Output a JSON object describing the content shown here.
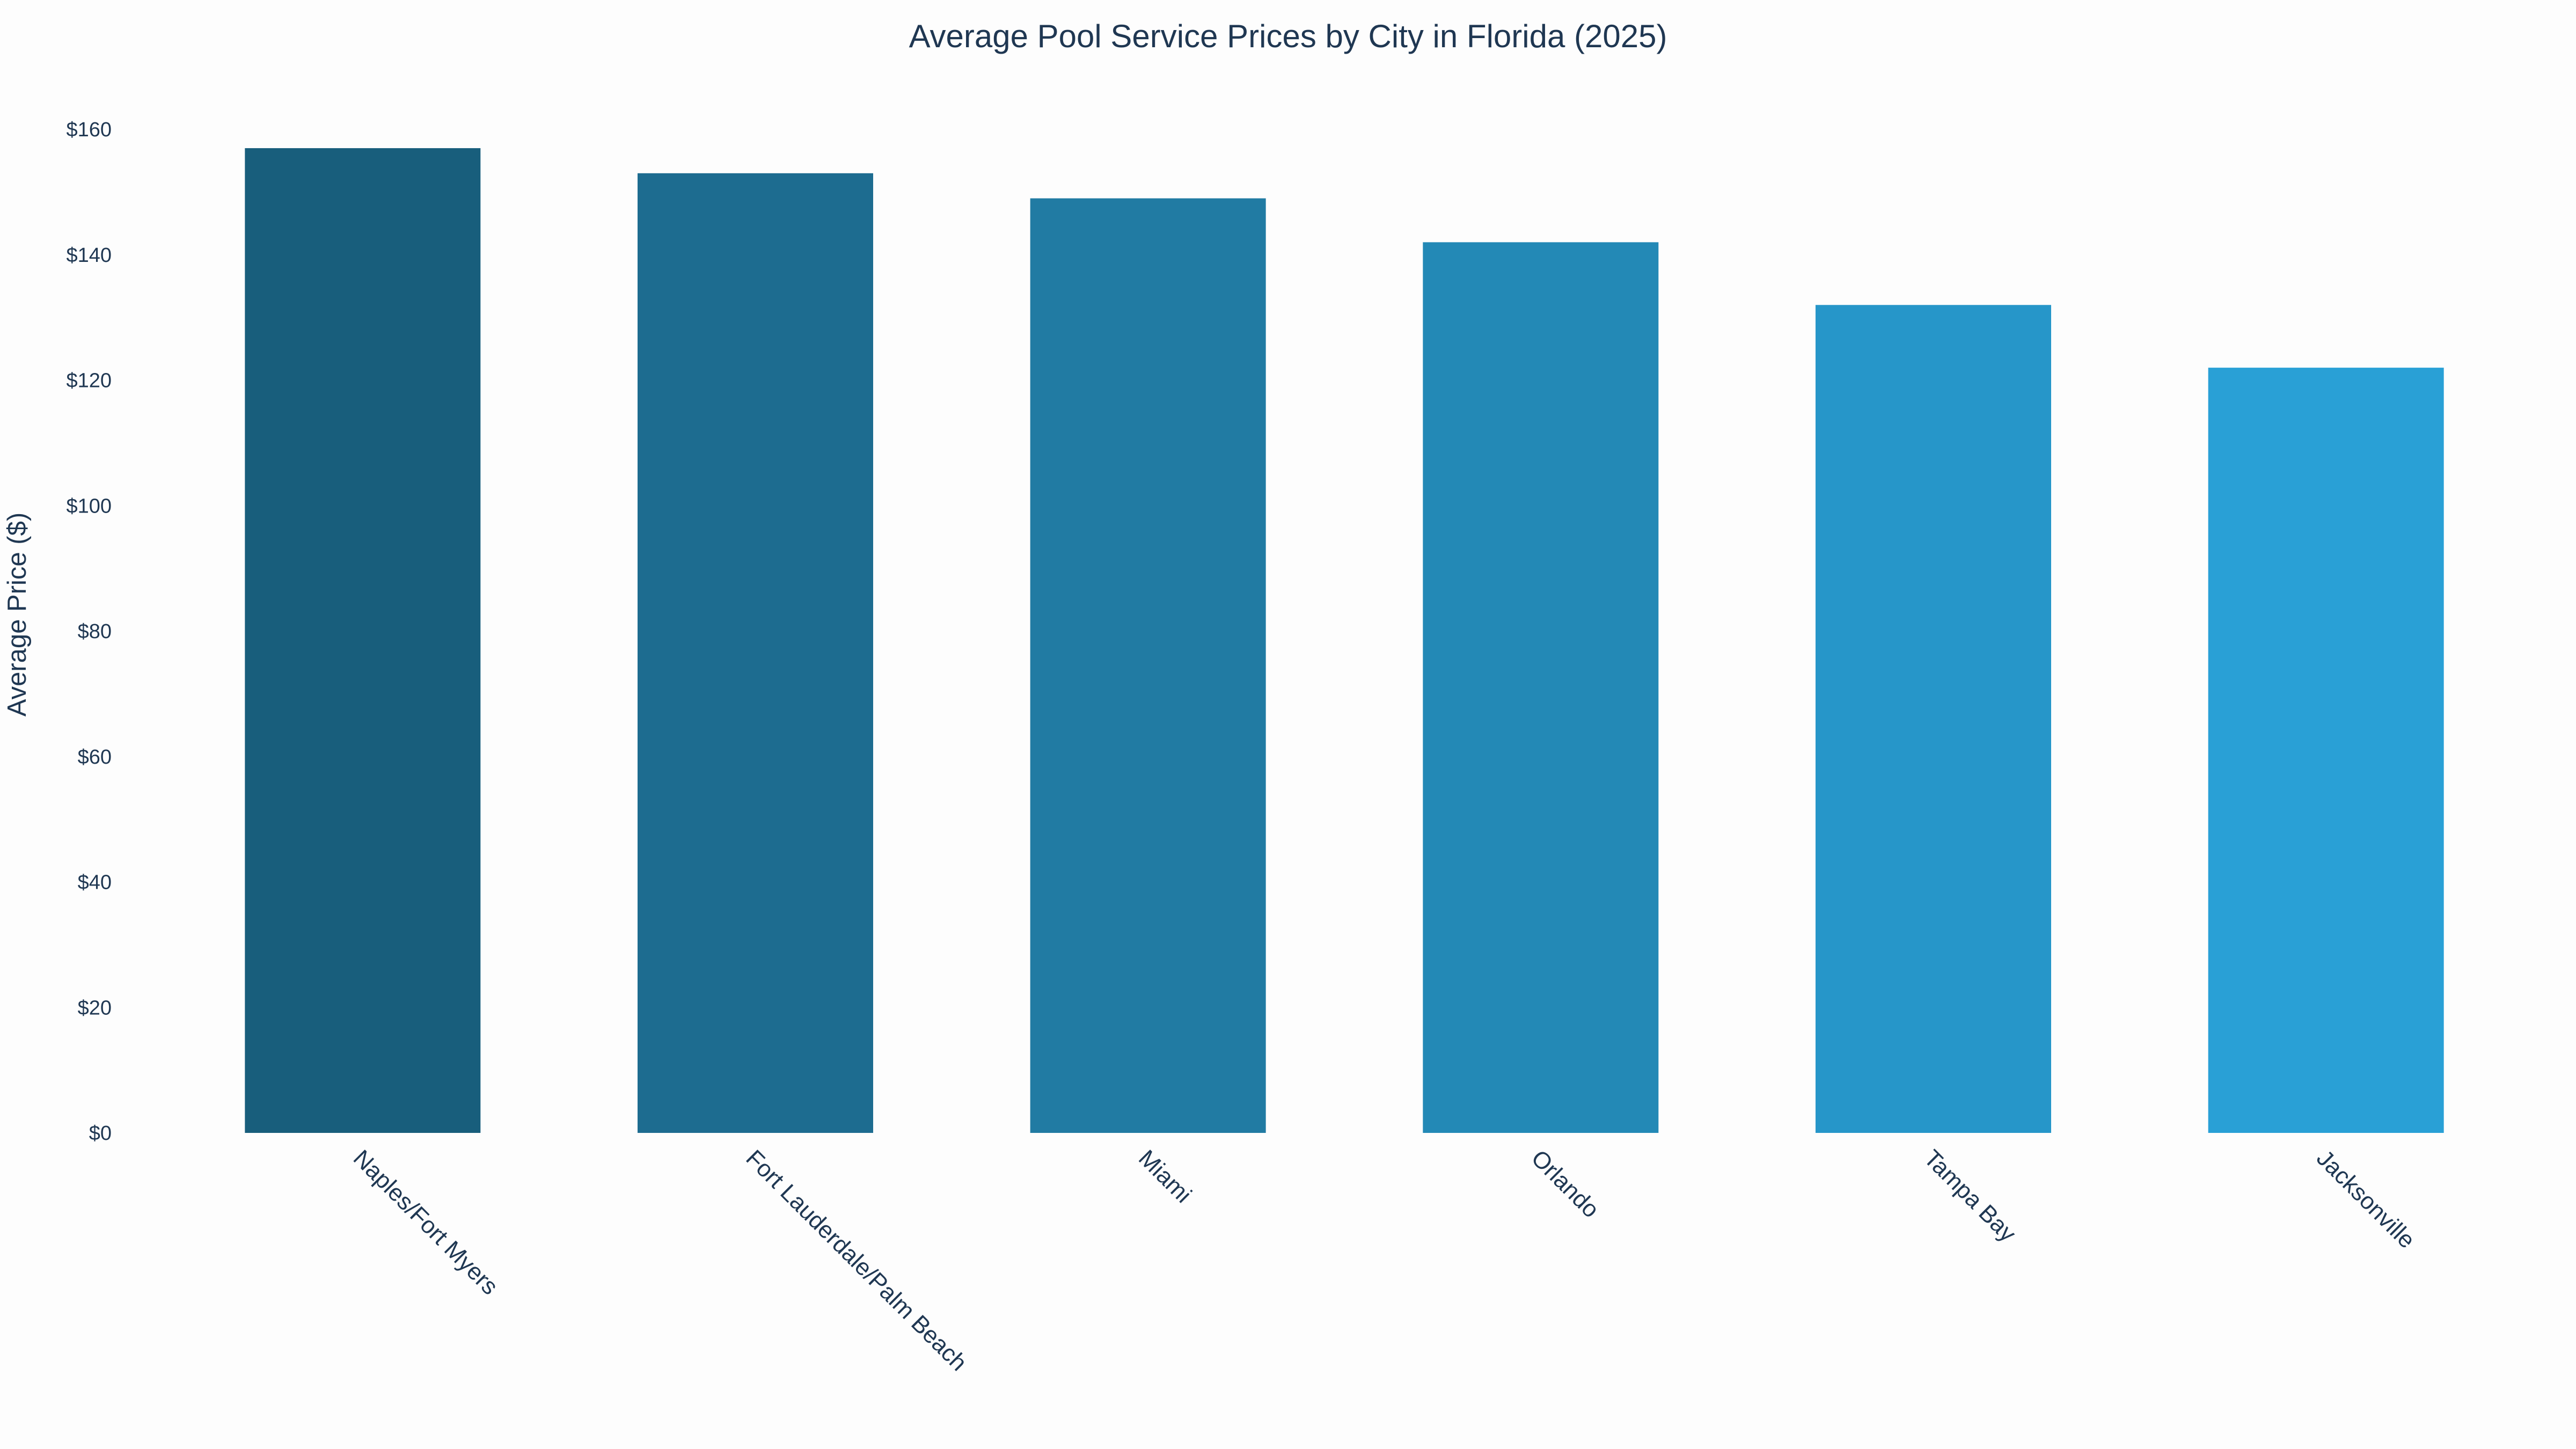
{
  "chart_data": {
    "type": "bar",
    "title": "Average Pool Service Prices by City in Florida (2025)",
    "xlabel": "",
    "ylabel": "Average Price ($)",
    "categories": [
      "Naples/Fort Myers",
      "Fort Lauderdale/Palm Beach",
      "Miami",
      "Orlando",
      "Tampa Bay",
      "Jacksonville"
    ],
    "values": [
      157,
      153,
      149,
      142,
      132,
      122
    ],
    "ylim": [
      0,
      160
    ],
    "y_ticks": [
      0,
      20,
      40,
      60,
      80,
      100,
      120,
      140,
      160
    ],
    "y_tick_labels": [
      "$0",
      "$20",
      "$40",
      "$60",
      "$80",
      "$100",
      "$120",
      "$140",
      "$160"
    ],
    "bar_colors": [
      "#185e7c",
      "#1d6c90",
      "#217ba3",
      "#2389b6",
      "#2696c9",
      "#29a0d6"
    ],
    "text_color": "#1f3752",
    "grid": false,
    "legend": "none"
  }
}
